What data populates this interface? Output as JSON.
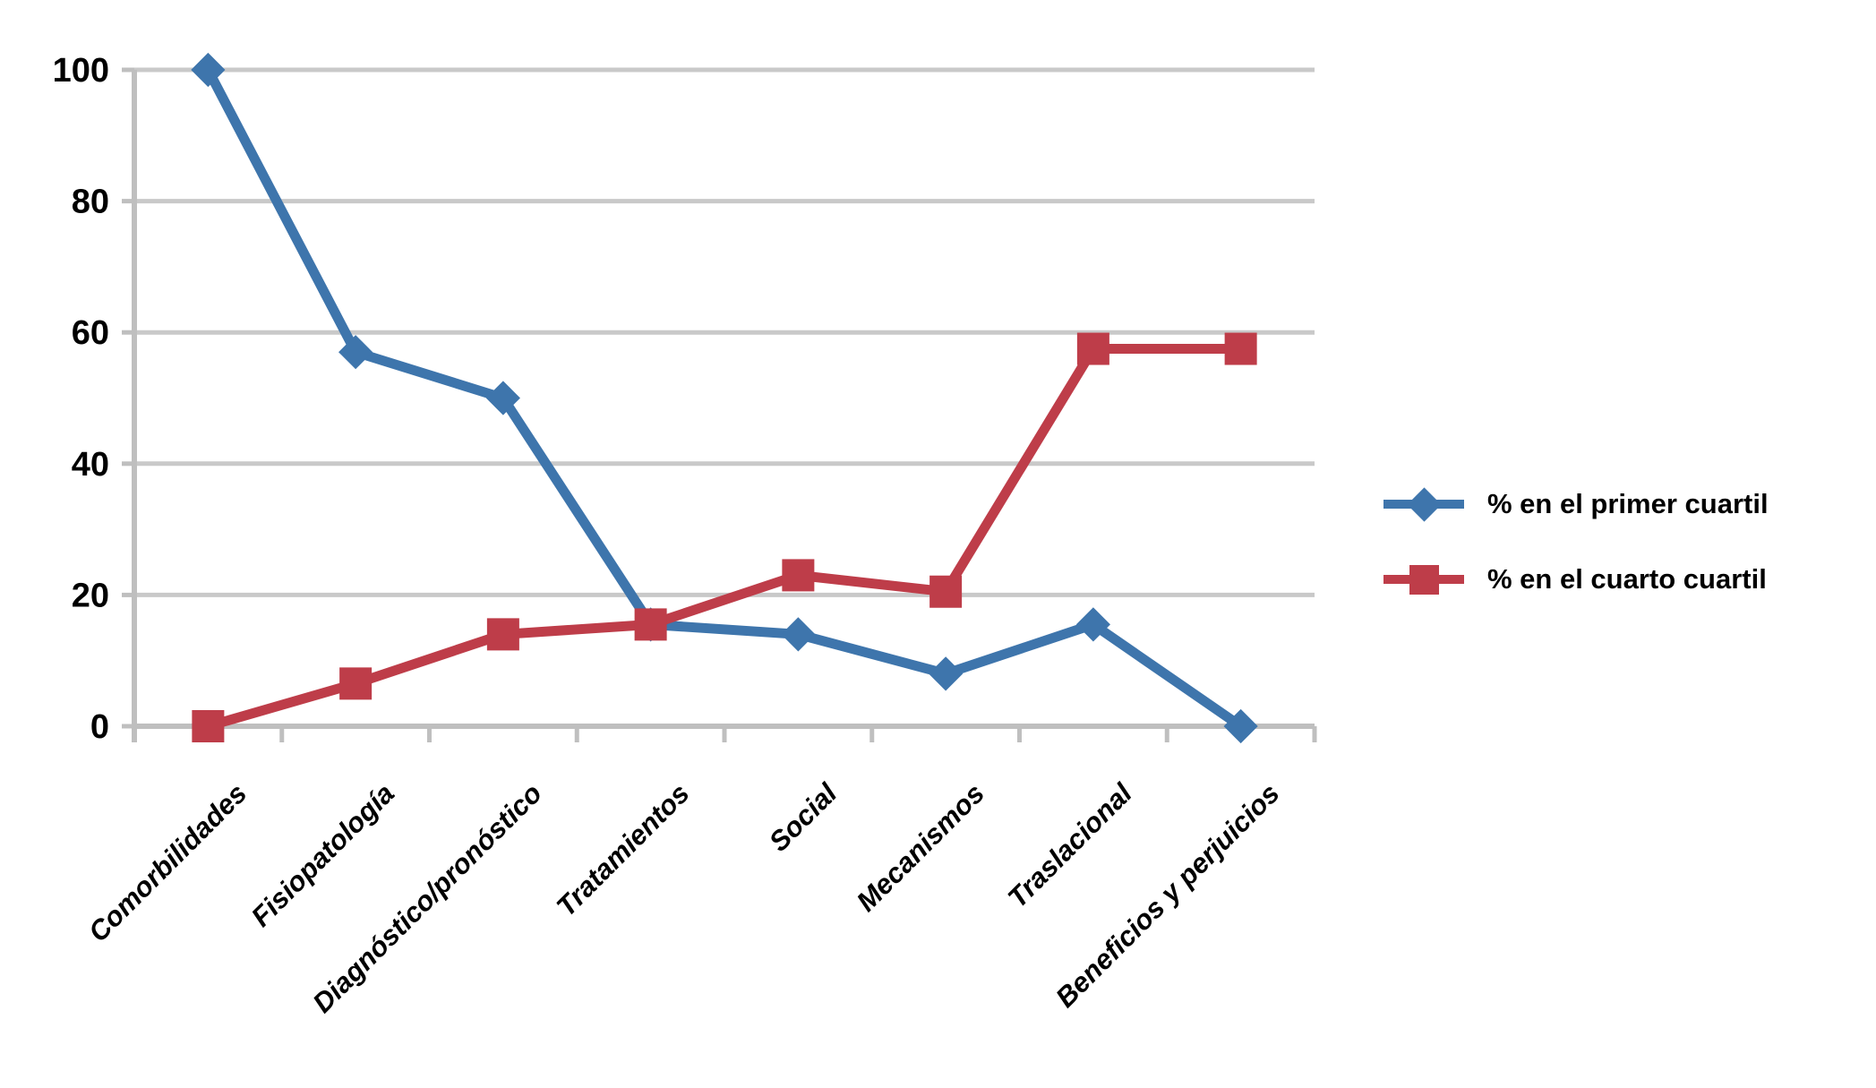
{
  "chart_data": {
    "type": "line",
    "categories": [
      "Comorbilidades",
      "Fisiopatología",
      "Diagnóstico/pronóstico",
      "Tratamientos",
      "Social",
      "Mecanismos",
      "Traslacional",
      "Beneficios y perjuicios"
    ],
    "series": [
      {
        "name": "% en el primer cuartil",
        "color": "#3E75AC",
        "marker": "diamond",
        "values": [
          100,
          57,
          50,
          15.5,
          14,
          8,
          15.5,
          0
        ]
      },
      {
        "name": "% en el cuarto cuartil",
        "color": "#BE3D49",
        "marker": "square",
        "values": [
          0,
          6.5,
          14,
          15.5,
          23,
          20.5,
          57.5,
          57.5
        ]
      }
    ],
    "title": "",
    "xlabel": "",
    "ylabel": "",
    "ylim": [
      0,
      100
    ],
    "yticks": [
      0,
      20,
      40,
      60,
      80,
      100
    ],
    "grid": "horizontal-only",
    "gridline_color": "#C9C9C9",
    "axis_color": "#BFBFBF",
    "tick_label_color": "#000000",
    "legend_position": "right-middle",
    "background_color": "#FFFFFF"
  }
}
